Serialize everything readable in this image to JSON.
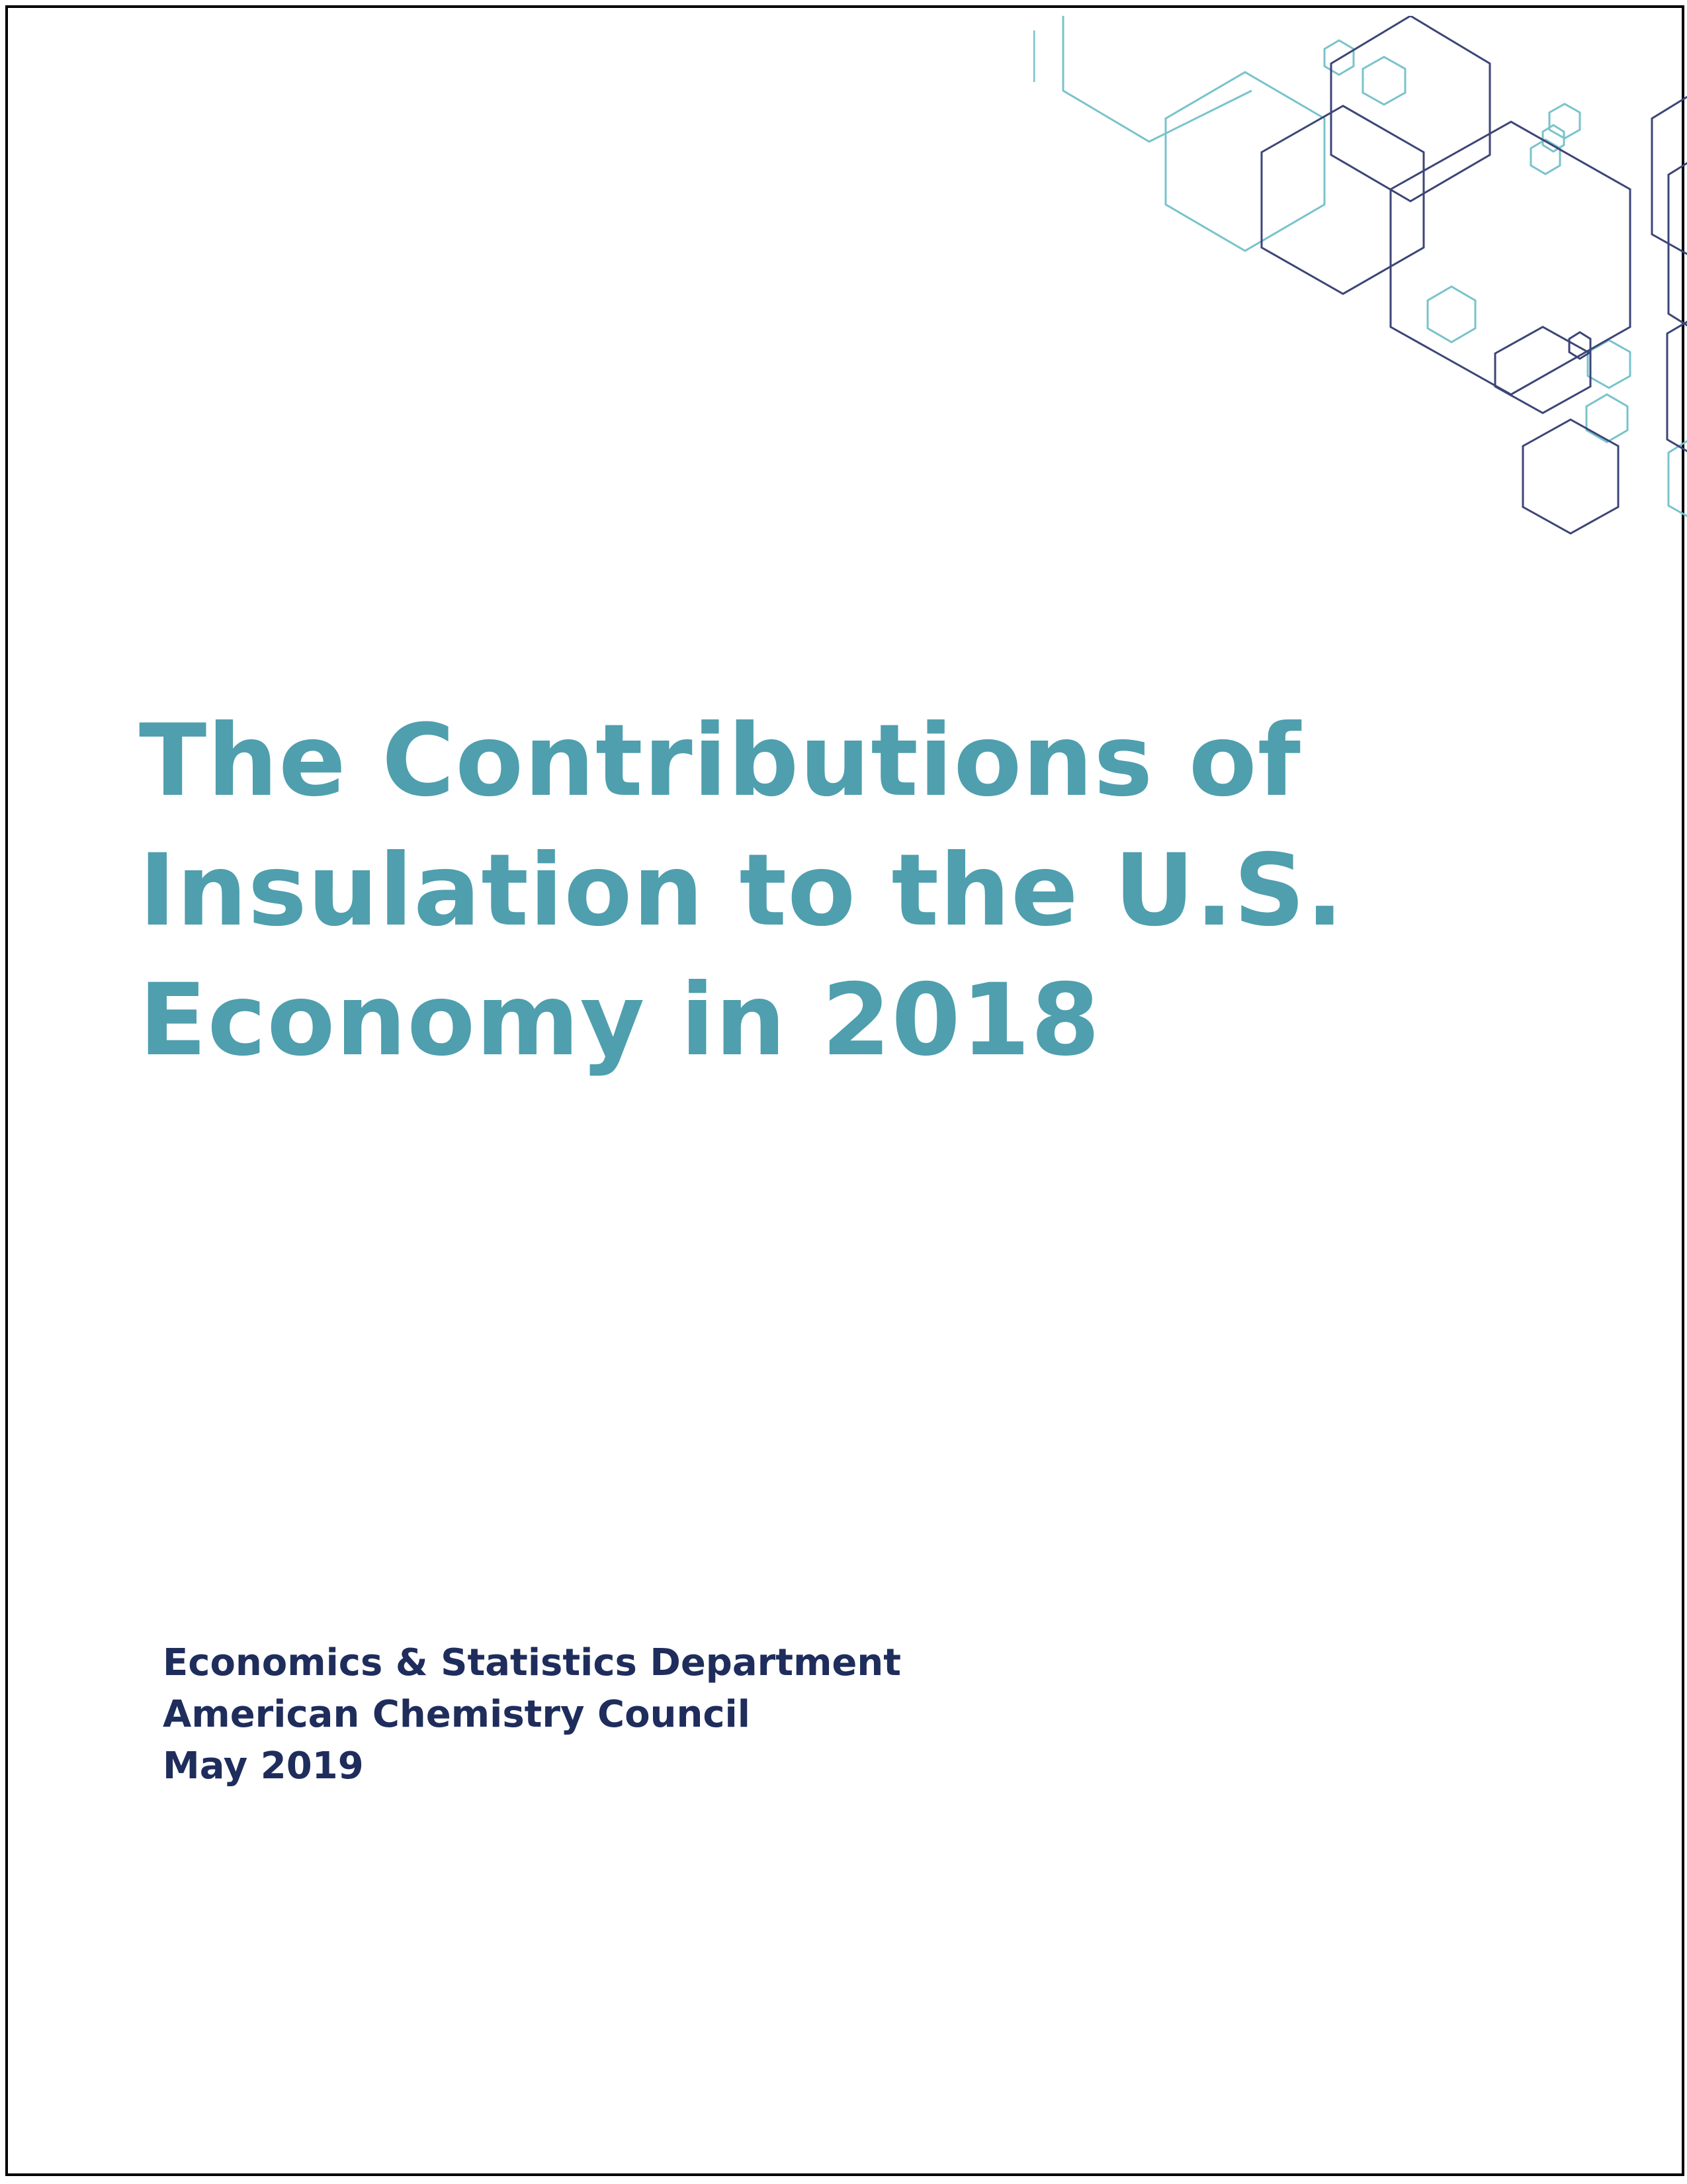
{
  "document": {
    "title_lines": [
      "The Contributions of",
      "Insulation to the U.S.",
      "Economy in 2018"
    ],
    "byline": {
      "department": "Economics & Statistics Department",
      "organization": "American Chemistry Council",
      "date": "May 2019"
    }
  },
  "colors": {
    "title": "#4f9fae",
    "byline": "#1f2d5c",
    "hex_navy": "#3d4577",
    "hex_teal": "#79c3cb",
    "border": "#000000"
  },
  "decoration": {
    "icon": "hexagon-pattern-icon"
  }
}
